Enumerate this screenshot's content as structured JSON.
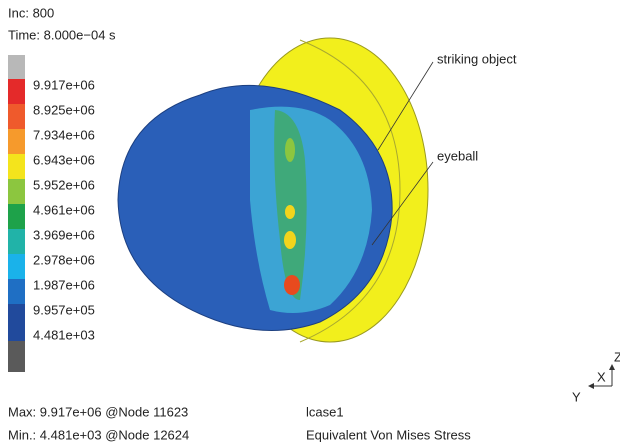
{
  "header": {
    "increment": "Inc: 800",
    "time": "Time: 8.000e−04 s"
  },
  "legend": {
    "labels": [
      "9.917e+06",
      "8.925e+06",
      "7.934e+06",
      "6.943e+06",
      "5.952e+06",
      "4.961e+06",
      "3.969e+06",
      "2.978e+06",
      "1.987e+06",
      "9.957e+05",
      "4.481e+03"
    ]
  },
  "annotations": [
    "striking object",
    "eyeball"
  ],
  "footer": {
    "max": "Max: 9.917e+06 @Node 11623",
    "min": "Min.: 4.481e+03 @Node 12624",
    "case": "lcase1",
    "quantity": "Equivalent Von Mises Stress"
  },
  "axes": {
    "z": "Z",
    "x": "X",
    "y": "Y"
  }
}
